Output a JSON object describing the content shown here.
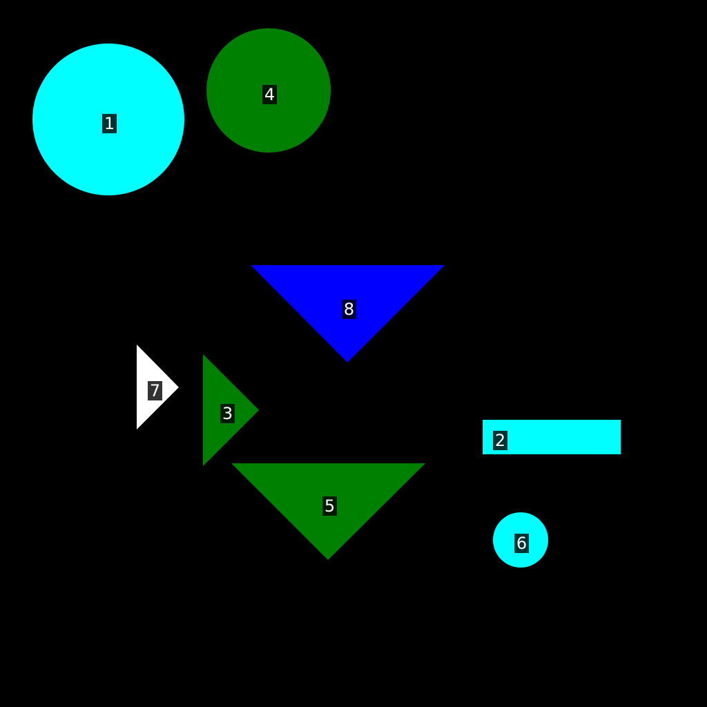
{
  "background_color": "#000000",
  "shapes": [
    {
      "label": "1",
      "kind": "circle",
      "color": "#00ffff"
    },
    {
      "label": "2",
      "kind": "rectangle",
      "color": "#00ffff"
    },
    {
      "label": "3",
      "kind": "triangle-right",
      "color": "#008000"
    },
    {
      "label": "4",
      "kind": "circle",
      "color": "#008000"
    },
    {
      "label": "5",
      "kind": "triangle-down",
      "color": "#008000"
    },
    {
      "label": "6",
      "kind": "circle",
      "color": "#00ffff"
    },
    {
      "label": "7",
      "kind": "triangle-right",
      "color": "#ffffff"
    },
    {
      "label": "8",
      "kind": "triangle-down",
      "color": "#0000ff"
    }
  ]
}
